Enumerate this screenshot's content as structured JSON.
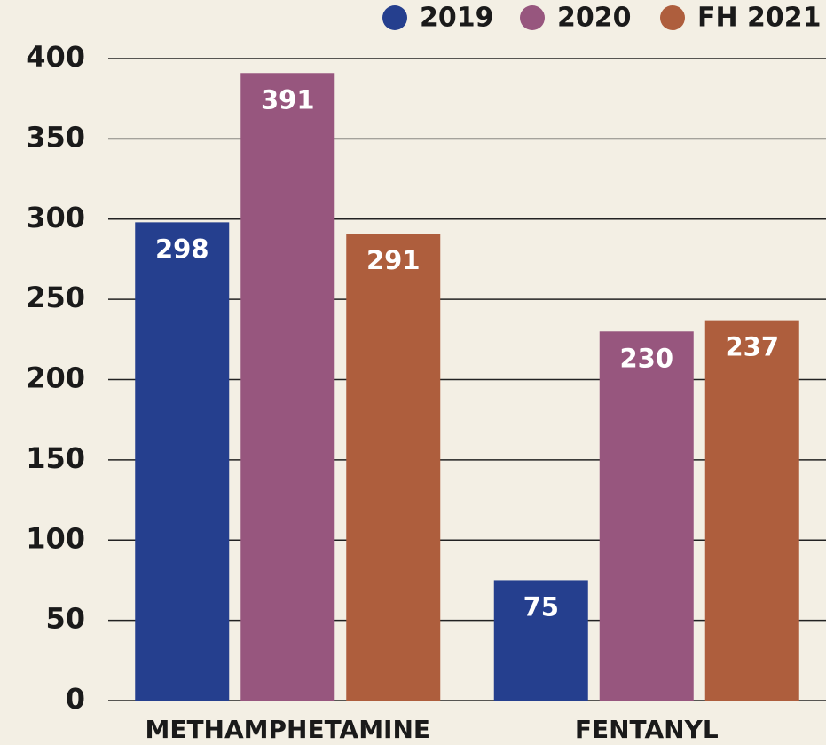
{
  "chart_data": {
    "type": "bar",
    "categories": [
      "METHAMPHETAMINE",
      "FENTANYL"
    ],
    "series": [
      {
        "name": "2019",
        "color": "#253f8e",
        "values": [
          298,
          75
        ]
      },
      {
        "name": "2020",
        "color": "#97567e",
        "values": [
          391,
          230
        ]
      },
      {
        "name": "FH 2021",
        "color": "#ae5e3d",
        "values": [
          291,
          237
        ]
      }
    ],
    "ylim": [
      0,
      400
    ],
    "yticks": [
      0,
      50,
      100,
      150,
      200,
      250,
      300,
      350,
      400
    ],
    "grid": true,
    "legend": "top-right"
  }
}
